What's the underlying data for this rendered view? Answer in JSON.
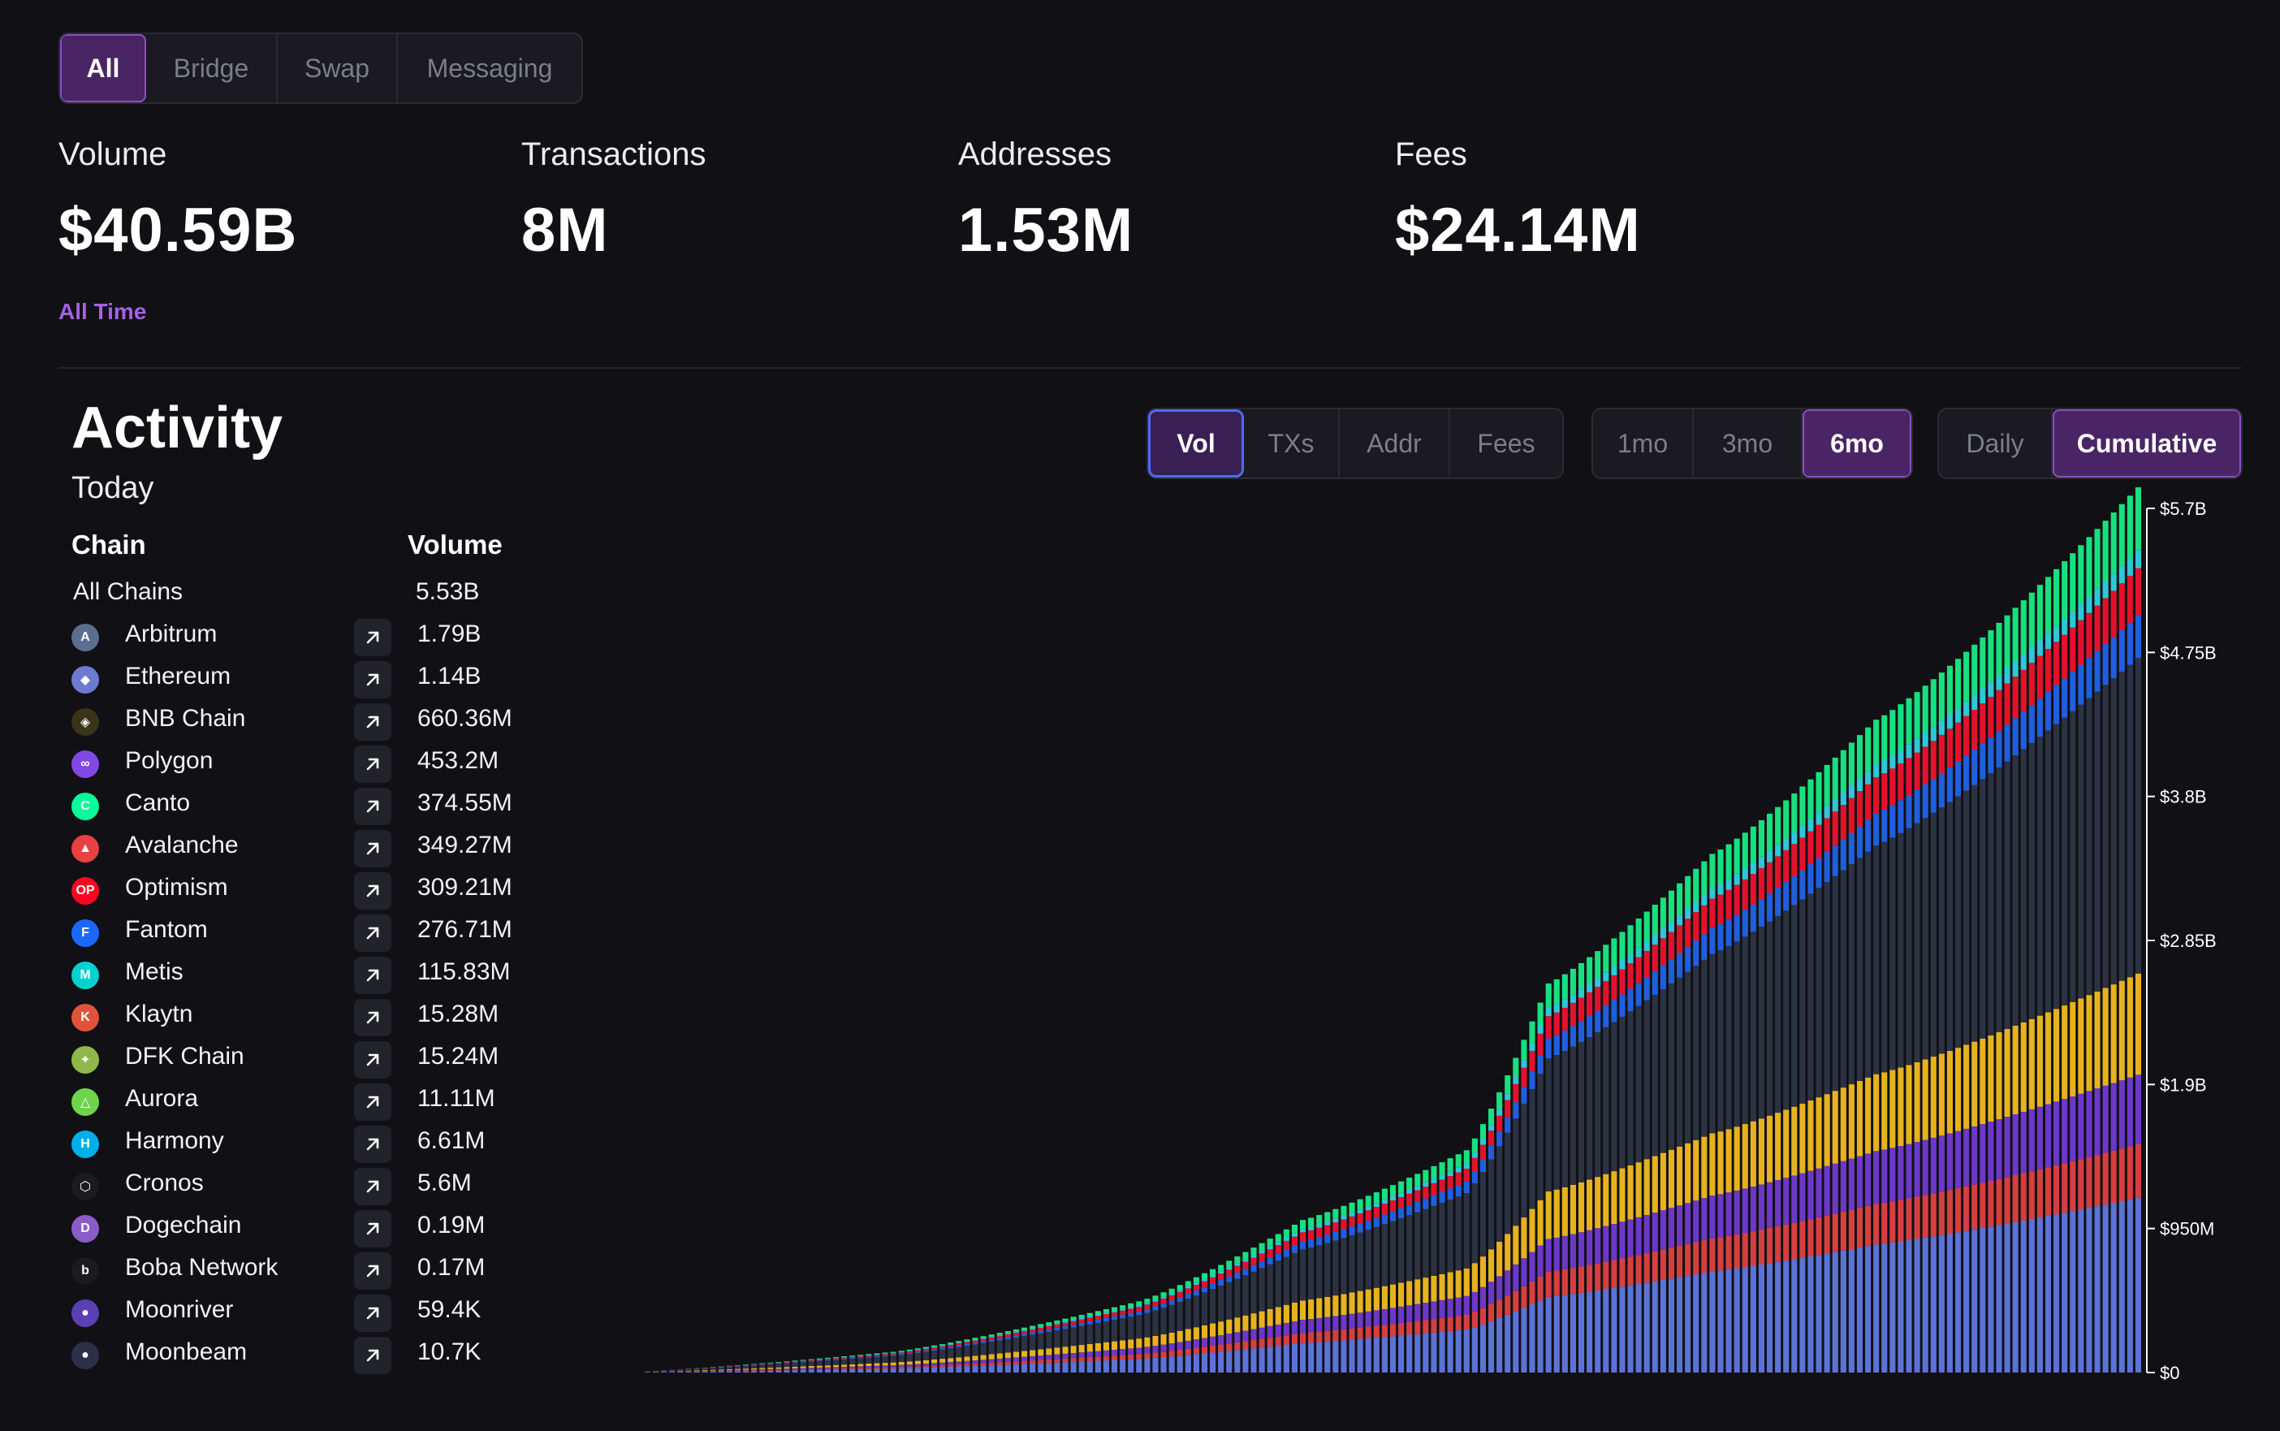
{
  "filters": {
    "tabs": [
      "All",
      "Bridge",
      "Swap",
      "Messaging"
    ],
    "active": "All"
  },
  "stats": [
    {
      "label": "Volume",
      "value": "$40.59B"
    },
    {
      "label": "Transactions",
      "value": "8M"
    },
    {
      "label": "Addresses",
      "value": "1.53M"
    },
    {
      "label": "Fees",
      "value": "$24.14M"
    }
  ],
  "period_label": "All Time",
  "activity": {
    "title": "Activity",
    "subtitle": "Today",
    "columns": {
      "chain": "Chain",
      "value": "Volume"
    },
    "all_chains": {
      "name": "All Chains",
      "value": "5.53B"
    },
    "chains": [
      {
        "name": "Arbitrum",
        "value": "1.79B",
        "color": "#5a6f8e",
        "icon": "arbitrum-icon"
      },
      {
        "name": "Ethereum",
        "value": "1.14B",
        "color": "#6c7bd0",
        "icon": "ethereum-icon"
      },
      {
        "name": "BNB Chain",
        "value": "660.36M",
        "color": "#3a3418",
        "icon": "bnb-icon"
      },
      {
        "name": "Polygon",
        "value": "453.2M",
        "color": "#8247e5",
        "icon": "polygon-icon"
      },
      {
        "name": "Canto",
        "value": "374.55M",
        "color": "#06fc99",
        "icon": "canto-icon"
      },
      {
        "name": "Avalanche",
        "value": "349.27M",
        "color": "#e84142",
        "icon": "avalanche-icon"
      },
      {
        "name": "Optimism",
        "value": "309.21M",
        "color": "#ff0420",
        "icon": "optimism-icon"
      },
      {
        "name": "Fantom",
        "value": "276.71M",
        "color": "#1969ff",
        "icon": "fantom-icon"
      },
      {
        "name": "Metis",
        "value": "115.83M",
        "color": "#00d2d2",
        "icon": "metis-icon"
      },
      {
        "name": "Klaytn",
        "value": "15.28M",
        "color": "#e0533a",
        "icon": "klaytn-icon"
      },
      {
        "name": "DFK Chain",
        "value": "15.24M",
        "color": "#8fb84a",
        "icon": "dfk-icon"
      },
      {
        "name": "Aurora",
        "value": "11.11M",
        "color": "#70d44b",
        "icon": "aurora-icon"
      },
      {
        "name": "Harmony",
        "value": "6.61M",
        "color": "#00aee9",
        "icon": "harmony-icon"
      },
      {
        "name": "Cronos",
        "value": "5.6M",
        "color": "#1a1a20",
        "icon": "cronos-icon"
      },
      {
        "name": "Dogechain",
        "value": "0.19M",
        "color": "#8a5cc7",
        "icon": "dogechain-icon"
      },
      {
        "name": "Boba Network",
        "value": "0.17M",
        "color": "#1a1a20",
        "icon": "boba-icon"
      },
      {
        "name": "Moonriver",
        "value": "59.4K",
        "color": "#5a3fb5",
        "icon": "moonriver-icon"
      },
      {
        "name": "Moonbeam",
        "value": "10.7K",
        "color": "#2b2f4a",
        "icon": "moonbeam-icon"
      }
    ]
  },
  "metric_toggle": {
    "options": [
      "Vol",
      "TXs",
      "Addr",
      "Fees"
    ],
    "active": "Vol"
  },
  "range_toggle": {
    "options": [
      "1mo",
      "3mo",
      "6mo"
    ],
    "active": "6mo"
  },
  "mode_toggle": {
    "options": [
      "Daily",
      "Cumulative"
    ],
    "active": "Cumulative"
  },
  "chart_data": {
    "type": "bar",
    "stacked": true,
    "cumulative": true,
    "ylim": [
      0,
      5700000000
    ],
    "y_ticks": [
      "$0",
      "$950M",
      "$1.9B",
      "$2.85B",
      "$3.8B",
      "$4.75B",
      "$5.7B"
    ],
    "bar_count": 183,
    "series_order_bottom_to_top": [
      "Ethereum",
      "Avalanche",
      "Polygon",
      "BNB Chain",
      "Arbitrum",
      "Fantom",
      "Optimism",
      "Metis",
      "Canto"
    ],
    "series": [
      {
        "name": "Ethereum",
        "color": "#5b73d6",
        "final_value": 1140000000
      },
      {
        "name": "Avalanche",
        "color": "#d63f3f",
        "final_value": 349270000
      },
      {
        "name": "Polygon",
        "color": "#6b38c8",
        "final_value": 453200000
      },
      {
        "name": "BNB Chain",
        "color": "#e6b21e",
        "final_value": 660360000
      },
      {
        "name": "Arbitrum",
        "color": "#2b3242",
        "final_value": 1790000000
      },
      {
        "name": "Fantom",
        "color": "#1f5fde",
        "final_value": 276710000
      },
      {
        "name": "Optimism",
        "color": "#e3122b",
        "final_value": 309210000
      },
      {
        "name": "Metis",
        "color": "#2ec7d8",
        "final_value": 115830000
      },
      {
        "name": "Canto",
        "color": "#17e07f",
        "final_value": 374550000
      }
    ],
    "totals_at_sample_points": [
      {
        "bar": 0,
        "total": 10000000
      },
      {
        "bar": 30,
        "total": 150000000
      },
      {
        "bar": 60,
        "total": 500000000
      },
      {
        "bar": 80,
        "total": 1050000000
      },
      {
        "bar": 100,
        "total": 1500000000
      },
      {
        "bar": 110,
        "total": 2600000000
      },
      {
        "bar": 130,
        "total": 3400000000
      },
      {
        "bar": 150,
        "total": 4200000000
      },
      {
        "bar": 182,
        "total": 5530000000
      }
    ]
  }
}
